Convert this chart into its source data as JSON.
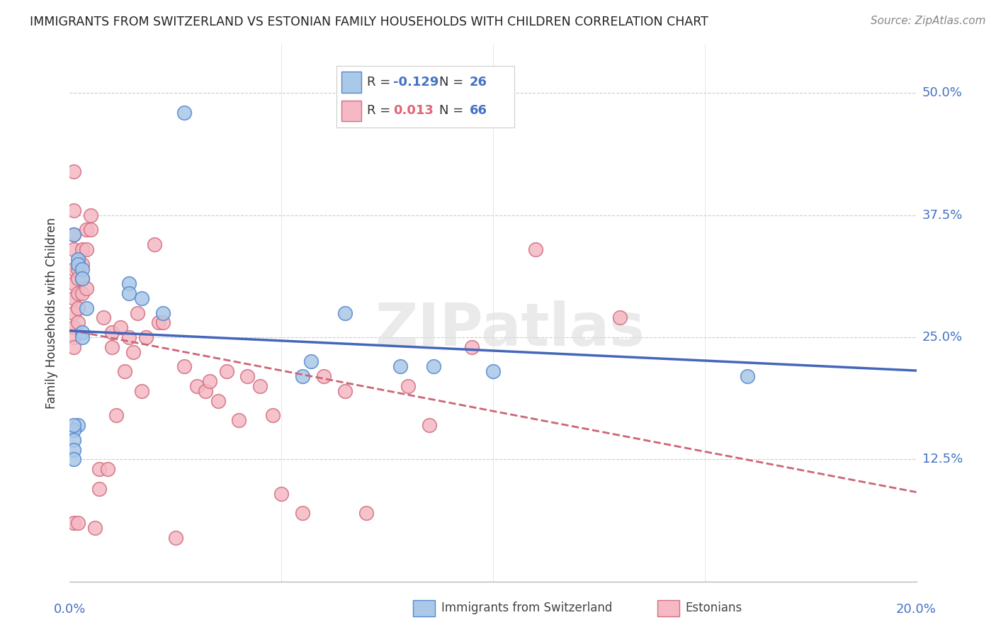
{
  "title": "IMMIGRANTS FROM SWITZERLAND VS ESTONIAN FAMILY HOUSEHOLDS WITH CHILDREN CORRELATION CHART",
  "source": "Source: ZipAtlas.com",
  "ylabel": "Family Households with Children",
  "xlim": [
    0.0,
    0.2
  ],
  "ylim": [
    0.0,
    0.55
  ],
  "xticks": [
    0.0,
    0.05,
    0.1,
    0.15,
    0.2
  ],
  "yticks": [
    0.0,
    0.125,
    0.25,
    0.375,
    0.5
  ],
  "ytick_labels": [
    "",
    "12.5%",
    "25.0%",
    "37.5%",
    "50.0%"
  ],
  "legend_blue_r": "-0.129",
  "legend_blue_n": "26",
  "legend_pink_r": "0.013",
  "legend_pink_n": "66",
  "blue_fill": "#aac8e8",
  "blue_edge": "#5588cc",
  "pink_fill": "#f5b8c4",
  "pink_edge": "#d07080",
  "blue_line": "#4466bb",
  "pink_line": "#cc6677",
  "grid_color": "#cccccc",
  "blue_points_x": [
    0.027,
    0.002,
    0.002,
    0.003,
    0.003,
    0.014,
    0.014,
    0.017,
    0.004,
    0.022,
    0.003,
    0.003,
    0.065,
    0.078,
    0.16,
    0.001,
    0.057,
    0.086,
    0.1,
    0.055,
    0.002,
    0.001,
    0.001,
    0.001,
    0.001,
    0.001
  ],
  "blue_points_y": [
    0.48,
    0.33,
    0.325,
    0.32,
    0.31,
    0.305,
    0.295,
    0.29,
    0.28,
    0.275,
    0.255,
    0.25,
    0.275,
    0.22,
    0.21,
    0.355,
    0.225,
    0.22,
    0.215,
    0.21,
    0.16,
    0.155,
    0.145,
    0.135,
    0.125,
    0.16
  ],
  "pink_points_x": [
    0.001,
    0.001,
    0.001,
    0.001,
    0.001,
    0.001,
    0.001,
    0.001,
    0.001,
    0.001,
    0.001,
    0.002,
    0.002,
    0.002,
    0.002,
    0.002,
    0.003,
    0.003,
    0.003,
    0.003,
    0.004,
    0.004,
    0.004,
    0.005,
    0.005,
    0.006,
    0.007,
    0.007,
    0.008,
    0.009,
    0.01,
    0.01,
    0.011,
    0.012,
    0.013,
    0.014,
    0.015,
    0.016,
    0.017,
    0.018,
    0.02,
    0.021,
    0.022,
    0.025,
    0.027,
    0.03,
    0.032,
    0.033,
    0.035,
    0.037,
    0.04,
    0.042,
    0.045,
    0.048,
    0.05,
    0.055,
    0.06,
    0.065,
    0.07,
    0.08,
    0.085,
    0.095,
    0.11,
    0.13,
    0.001,
    0.002
  ],
  "pink_points_y": [
    0.42,
    0.38,
    0.355,
    0.34,
    0.32,
    0.305,
    0.29,
    0.275,
    0.26,
    0.25,
    0.24,
    0.32,
    0.31,
    0.295,
    0.28,
    0.265,
    0.34,
    0.325,
    0.31,
    0.295,
    0.36,
    0.34,
    0.3,
    0.375,
    0.36,
    0.055,
    0.115,
    0.095,
    0.27,
    0.115,
    0.255,
    0.24,
    0.17,
    0.26,
    0.215,
    0.25,
    0.235,
    0.275,
    0.195,
    0.25,
    0.345,
    0.265,
    0.265,
    0.045,
    0.22,
    0.2,
    0.195,
    0.205,
    0.185,
    0.215,
    0.165,
    0.21,
    0.2,
    0.17,
    0.09,
    0.07,
    0.21,
    0.195,
    0.07,
    0.2,
    0.16,
    0.24,
    0.34,
    0.27,
    0.06,
    0.06
  ]
}
